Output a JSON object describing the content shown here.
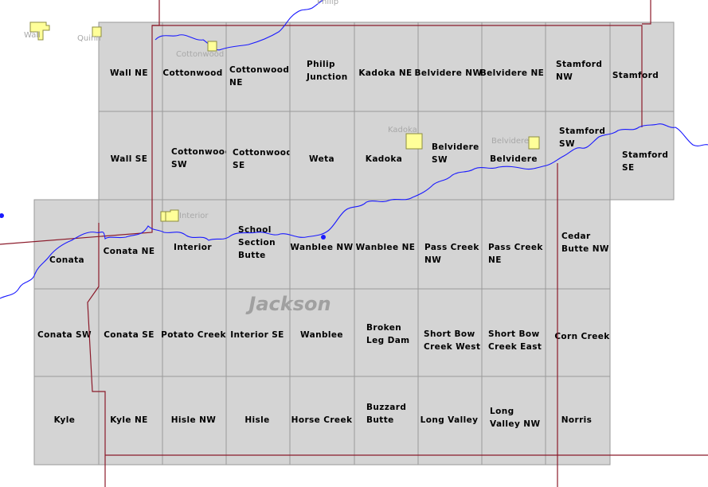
{
  "county_label": "Jackson",
  "quads": [
    {
      "name": "Wall NE",
      "lines": [
        "Wall NE"
      ]
    },
    {
      "name": "Cottonwood",
      "lines": [
        "Cottonwood"
      ]
    },
    {
      "name": "Cottonwood NE",
      "lines": [
        "Cottonwood",
        "NE"
      ]
    },
    {
      "name": "Philip Junction",
      "lines": [
        "Philip",
        "Junction"
      ]
    },
    {
      "name": "Kadoka NE",
      "lines": [
        "Kadoka NE"
      ]
    },
    {
      "name": "Belvidere NW",
      "lines": [
        "Belvidere NW"
      ]
    },
    {
      "name": "Belvidere NE",
      "lines": [
        "Belvidere NE"
      ]
    },
    {
      "name": "Stamford NW",
      "lines": [
        "Stamford",
        "NW"
      ]
    },
    {
      "name": "Stamford",
      "lines": [
        "Stamford"
      ]
    },
    {
      "name": "Wall SE",
      "lines": [
        "Wall SE"
      ]
    },
    {
      "name": "Cottonwood SW",
      "lines": [
        "Cottonwood",
        "SW"
      ]
    },
    {
      "name": "Cottonwood SE",
      "lines": [
        "Cottonwood",
        "SE"
      ]
    },
    {
      "name": "Weta",
      "lines": [
        "Weta"
      ]
    },
    {
      "name": "Kadoka",
      "lines": [
        "Kadoka"
      ]
    },
    {
      "name": "Belvidere SW",
      "lines": [
        "Belvidere",
        "SW"
      ]
    },
    {
      "name": "Belvidere",
      "lines": [
        "Belvidere"
      ]
    },
    {
      "name": "Stamford SW",
      "lines": [
        "Stamford",
        "SW"
      ]
    },
    {
      "name": "Stamford SE",
      "lines": [
        "Stamford",
        "SE"
      ]
    },
    {
      "name": "Conata",
      "lines": [
        "Conata"
      ]
    },
    {
      "name": "Conata NE",
      "lines": [
        "Conata NE"
      ]
    },
    {
      "name": "Interior",
      "lines": [
        "Interior"
      ]
    },
    {
      "name": "School Section Butte",
      "lines": [
        "School",
        "Section",
        "Butte"
      ]
    },
    {
      "name": "Wanblee NW",
      "lines": [
        "Wanblee NW"
      ]
    },
    {
      "name": "Wanblee NE",
      "lines": [
        "Wanblee NE"
      ]
    },
    {
      "name": "Pass Creek NW",
      "lines": [
        "Pass Creek",
        "NW"
      ]
    },
    {
      "name": "Pass Creek NE",
      "lines": [
        "Pass Creek",
        "NE"
      ]
    },
    {
      "name": "Cedar Butte NW",
      "lines": [
        "Cedar",
        "Butte NW"
      ]
    },
    {
      "name": "Conata SW",
      "lines": [
        "Conata SW"
      ]
    },
    {
      "name": "Conata SE",
      "lines": [
        "Conata SE"
      ]
    },
    {
      "name": "Potato Creek",
      "lines": [
        "Potato Creek"
      ]
    },
    {
      "name": "Interior SE",
      "lines": [
        "Interior SE"
      ]
    },
    {
      "name": "Wanblee",
      "lines": [
        "Wanblee"
      ]
    },
    {
      "name": "Broken Leg Dam",
      "lines": [
        "Broken",
        "Leg Dam"
      ]
    },
    {
      "name": "Short Bow Creek West",
      "lines": [
        "Short Bow",
        "Creek West"
      ]
    },
    {
      "name": "Short Bow Creek East",
      "lines": [
        "Short Bow",
        "Creek East"
      ]
    },
    {
      "name": "Corn Creek",
      "lines": [
        "Corn Creek"
      ]
    },
    {
      "name": "Kyle",
      "lines": [
        "Kyle"
      ]
    },
    {
      "name": "Kyle NE",
      "lines": [
        "Kyle NE"
      ]
    },
    {
      "name": "Hisle NW",
      "lines": [
        "Hisle NW"
      ]
    },
    {
      "name": "Hisle",
      "lines": [
        "Hisle"
      ]
    },
    {
      "name": "Horse Creek",
      "lines": [
        "Horse Creek"
      ]
    },
    {
      "name": "Buzzard Butte",
      "lines": [
        "Buzzard",
        "Butte"
      ]
    },
    {
      "name": "Long Valley",
      "lines": [
        "Long Valley"
      ]
    },
    {
      "name": "Long Valley NW",
      "lines": [
        "Long",
        "Valley NW"
      ]
    },
    {
      "name": "Norris",
      "lines": [
        "Norris"
      ]
    }
  ],
  "towns": [
    {
      "name": "Wall",
      "label": "Wall"
    },
    {
      "name": "Quinn",
      "label": "Quinn"
    },
    {
      "name": "Cottonwood",
      "label": "Cottonwood"
    },
    {
      "name": "Kadoka",
      "label": "Kadoka"
    },
    {
      "name": "Belvidere",
      "label": "Belvidere"
    },
    {
      "name": "Interior",
      "label": "Interior"
    },
    {
      "name": "Philip",
      "label": "Philip"
    }
  ],
  "colors": {
    "quad_fill": "#d4d4d4",
    "quad_border": "#9a9a9a",
    "town_fill": "#ffff99",
    "boundary": "#8b1a2a",
    "river": "#1a1aff",
    "county_label": "#a0a0a0"
  }
}
